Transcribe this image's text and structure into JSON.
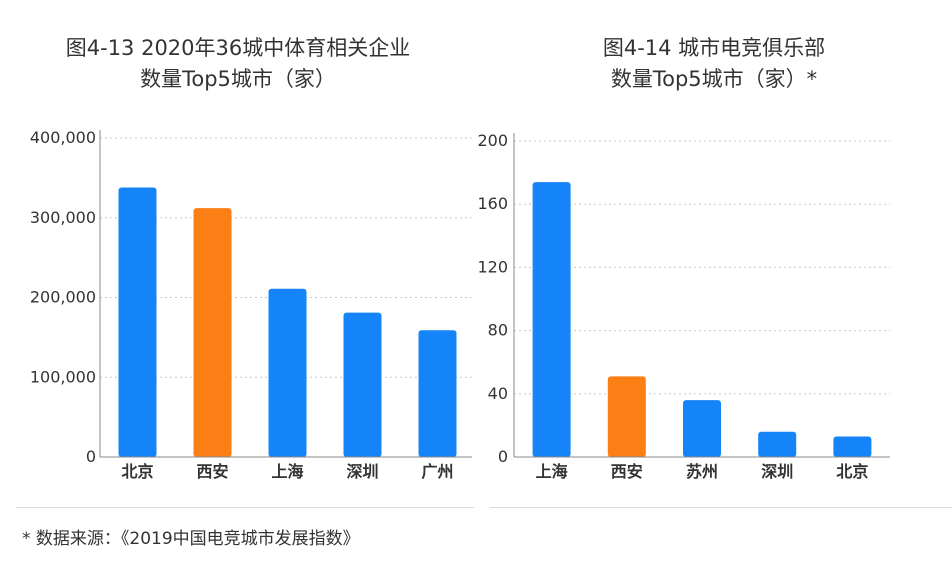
{
  "colors": {
    "blue": "#1484f8",
    "orange": "#fb7f14",
    "grid": "#c8c8c8",
    "axis": "#888888"
  },
  "chart_data": [
    {
      "type": "bar",
      "title_lines": [
        "图4-13 2020年36城中体育相关企业",
        "数量Top5城市（家）"
      ],
      "categories": [
        "北京",
        "西安",
        "上海",
        "深圳",
        "广州"
      ],
      "values": [
        338000,
        312000,
        211000,
        181000,
        159000
      ],
      "highlight_index": 1,
      "ylim": [
        0,
        400000
      ],
      "yticks": [
        0,
        100000,
        200000,
        300000,
        400000
      ],
      "ytick_labels": [
        "0",
        "100,000",
        "200,000",
        "300,000",
        "400,000"
      ],
      "grid": true
    },
    {
      "type": "bar",
      "title_lines": [
        "图4-14 城市电竞俱乐部",
        "数量Top5城市（家）*"
      ],
      "categories": [
        "上海",
        "西安",
        "苏州",
        "深圳",
        "北京"
      ],
      "values": [
        174,
        51,
        36,
        16,
        13
      ],
      "highlight_index": 1,
      "ylim": [
        0,
        200
      ],
      "yticks": [
        0,
        40,
        80,
        120,
        160,
        200
      ],
      "ytick_labels": [
        "0",
        "40",
        "80",
        "120",
        "160",
        "200"
      ],
      "grid": true
    }
  ],
  "footnote": "* 数据来源：《2019中国电竞城市发展指数》"
}
